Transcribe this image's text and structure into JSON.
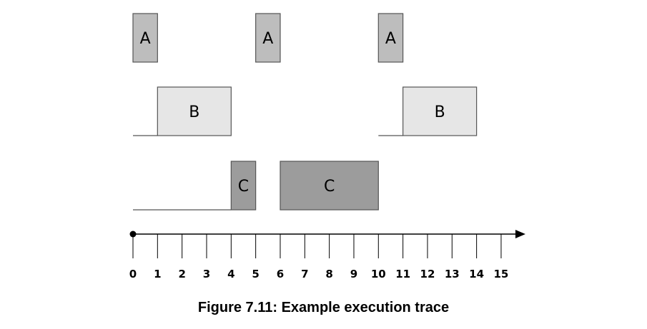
{
  "caption": "Figure 7.11: Example execution trace",
  "timeline": {
    "start": 0,
    "end": 15,
    "ticks": [
      "0",
      "1",
      "2",
      "3",
      "4",
      "5",
      "6",
      "7",
      "8",
      "9",
      "10",
      "11",
      "12",
      "13",
      "14",
      "15"
    ]
  },
  "tasks": [
    {
      "name": "A",
      "color": "#bdbdbd",
      "baseline": false,
      "segments": [
        {
          "start": 0,
          "end": 1,
          "label": "A"
        },
        {
          "start": 5,
          "end": 6,
          "label": "A"
        },
        {
          "start": 10,
          "end": 11,
          "label": "A"
        }
      ]
    },
    {
      "name": "B",
      "color": "#e6e6e6",
      "baseline": true,
      "baselines": [
        [
          0,
          1
        ],
        [
          10,
          11
        ]
      ],
      "segments": [
        {
          "start": 1,
          "end": 4,
          "label": "B"
        },
        {
          "start": 11,
          "end": 14,
          "label": "B"
        }
      ]
    },
    {
      "name": "C",
      "color": "#9c9c9c",
      "baseline": true,
      "baselines": [
        [
          0,
          4
        ]
      ],
      "segments": [
        {
          "start": 4,
          "end": 5,
          "label": "C"
        },
        {
          "start": 6,
          "end": 10,
          "label": "C"
        }
      ]
    }
  ]
}
